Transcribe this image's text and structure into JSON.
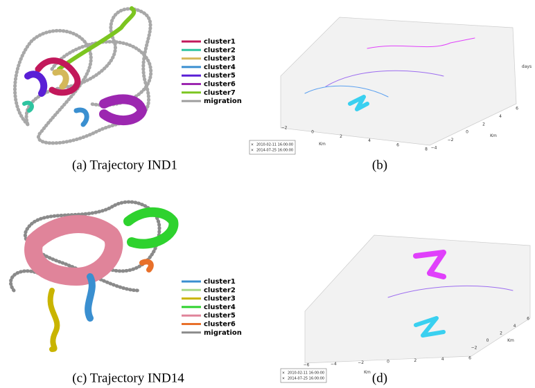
{
  "panels": [
    {
      "caption": "(a) Trajectory IND1",
      "legend": [
        {
          "name": "cluster1",
          "color": "#c2185b"
        },
        {
          "name": "cluster2",
          "color": "#2ec4a0"
        },
        {
          "name": "cluster3",
          "color": "#d4b85a"
        },
        {
          "name": "cluster4",
          "color": "#3a8fd0"
        },
        {
          "name": "cluster5",
          "color": "#5a1fd6"
        },
        {
          "name": "cluster6",
          "color": "#9c27b0"
        },
        {
          "name": "cluster7",
          "color": "#7cc520"
        },
        {
          "name": "migration",
          "color": "#9e9e9e"
        }
      ]
    },
    {
      "caption": "(b)",
      "xticks": [
        "−2",
        "0",
        "2",
        "4",
        "6",
        "8"
      ],
      "yticks": [
        "−4",
        "−2",
        "0",
        "2",
        "4",
        "6"
      ],
      "xlabel": "Km",
      "ylabel": "Km",
      "zlabel": "days",
      "dates": [
        "2010-02-11 16:00:00",
        "2014-07-25 16:00:00"
      ]
    },
    {
      "caption": "(c) Trajectory IND14",
      "legend": [
        {
          "name": "cluster1",
          "color": "#3a8fd0"
        },
        {
          "name": "cluster2",
          "color": "#a6d98a"
        },
        {
          "name": "cluster3",
          "color": "#c9b400"
        },
        {
          "name": "cluster4",
          "color": "#2ed22e"
        },
        {
          "name": "cluster5",
          "color": "#e0849a"
        },
        {
          "name": "cluster6",
          "color": "#e8702a"
        },
        {
          "name": "migration",
          "color": "#8a8a8a"
        }
      ]
    },
    {
      "caption": "(d)",
      "xticks": [
        "−6",
        "−4",
        "−2",
        "0",
        "2",
        "4",
        "6"
      ],
      "yticks": [
        "−2",
        "0",
        "2",
        "4",
        "6"
      ],
      "xlabel": "Km",
      "ylabel": "Km",
      "dates": [
        "2010-02-11 16:00:00",
        "2014-07-25 16:00:00"
      ]
    }
  ]
}
